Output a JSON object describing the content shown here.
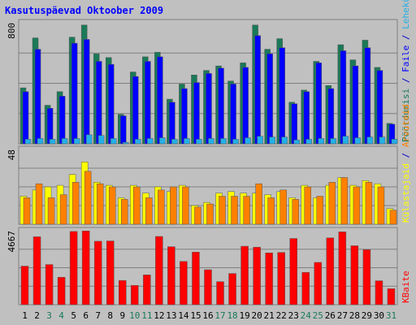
{
  "chart_data": {
    "type": "bar",
    "title": "Kasutuspäevad Oktoober 2009",
    "days": [
      "1",
      "2",
      "3",
      "4",
      "5",
      "6",
      "7",
      "8",
      "9",
      "10",
      "11",
      "12",
      "13",
      "14",
      "15",
      "16",
      "17",
      "18",
      "19",
      "20",
      "21",
      "22",
      "23",
      "24",
      "25",
      "26",
      "27",
      "28",
      "29",
      "30",
      "31"
    ],
    "weekend_days": [
      "3",
      "4",
      "10",
      "11",
      "17",
      "18",
      "24",
      "25",
      "31"
    ],
    "panels": [
      {
        "name": "top",
        "ymax_label": "800",
        "ymax": 800,
        "right_label": [
          {
            "text": "Pöördumisi",
            "color": "#1a7a58"
          },
          {
            "text": " / ",
            "color": "#0000cc"
          },
          {
            "text": "Faile",
            "color": "#0000ff"
          },
          {
            "text": " / ",
            "color": "#0000cc"
          },
          {
            "text": "Lehekülgi",
            "color": "#23b0e8"
          }
        ],
        "series": [
          {
            "name": "Pöördumisi",
            "color": "#1a7a58",
            "values": [
              370,
              700,
              255,
              345,
              705,
              785,
              595,
              570,
              195,
              475,
              575,
              605,
              295,
              395,
              455,
              485,
              515,
              415,
              535,
              785,
              625,
              695,
              275,
              355,
              545,
              385,
              655,
              555,
              685,
              505,
              135
            ]
          },
          {
            "name": "Faile",
            "color": "#0000ff",
            "values": [
              345,
              625,
              235,
              315,
              665,
              690,
              545,
              525,
              185,
              445,
              545,
              575,
              275,
              365,
              405,
              465,
              500,
              395,
              505,
              715,
              595,
              635,
              265,
              345,
              535,
              365,
              615,
              515,
              635,
              485,
              130
            ]
          },
          {
            "name": "Lehekülgi",
            "color": "#23b0e8",
            "values": [
              30,
              35,
              30,
              35,
              35,
              60,
              55,
              35,
              10,
              30,
              35,
              40,
              30,
              35,
              30,
              35,
              35,
              30,
              40,
              50,
              45,
              45,
              25,
              30,
              35,
              35,
              50,
              40,
              45,
              45,
              30
            ]
          }
        ]
      },
      {
        "name": "middle",
        "ymax_label": "48",
        "ymax": 48,
        "right_label": [
          {
            "text": "Külastajaid",
            "color": "#ffff00"
          },
          {
            "text": " / ",
            "color": "#0000cc"
          },
          {
            "text": "Arvuteid",
            "color": "#ff8000"
          }
        ],
        "series": [
          {
            "name": "Külastajaid",
            "color": "#ffff00",
            "values": [
              18,
              22,
              24,
              25,
              32,
              40,
              27,
              25,
              17,
              25,
              20,
              24,
              21,
              25,
              12,
              14,
              20,
              21,
              20,
              20,
              19,
              21,
              17,
              25,
              17,
              25,
              30,
              25,
              28,
              26,
              10
            ]
          },
          {
            "name": "Arvuteid",
            "color": "#ff8000",
            "values": [
              17,
              26,
              17,
              19,
              27,
              34,
              26,
              24,
              16,
              24,
              17,
              22,
              24,
              24,
              11,
              13,
              18,
              18,
              18,
              26,
              17,
              22,
              16,
              24,
              18,
              27,
              30,
              24,
              27,
              24,
              9
            ]
          }
        ]
      },
      {
        "name": "bottom",
        "ymax_label": "4667",
        "ymax": 4667,
        "right_label": [
          {
            "text": "KBaite",
            "color": "#ff0000"
          }
        ],
        "series": [
          {
            "name": "KBaite",
            "color": "#ff0000",
            "values": [
              2435,
              4287,
              2536,
              1733,
              4623,
              4652,
              4007,
              4023,
              1530,
              1220,
              1880,
              4307,
              3660,
              2734,
              3320,
              2207,
              1455,
              1970,
              3690,
              3630,
              3270,
              3300,
              4180,
              2040,
              2670,
              4217,
              4597,
              3720,
              3470,
              1510,
              1009
            ]
          }
        ]
      }
    ]
  }
}
